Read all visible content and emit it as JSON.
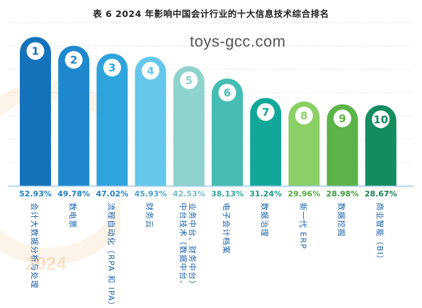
{
  "title": "表 6  2024 年影响中国会计行业的十大信息技术综合排名",
  "watermark_text": "toys-gcc.com",
  "logo_watermark": {
    "year": "2024"
  },
  "colors": {
    "bar": [
      "#1472ba",
      "#1e88cf",
      "#2fa3dc",
      "#65c7ec",
      "#8fd3cd",
      "#46bdb2",
      "#11a89a",
      "#8bd067",
      "#5cb348",
      "#138c5f"
    ],
    "value": [
      "#2480c4",
      "#2480c4",
      "#2480c4",
      "#4aa3d6",
      "#7fb8c9",
      "#35aaa0",
      "#1a9a86",
      "#55a83c",
      "#3e9d3f",
      "#1d8156"
    ],
    "label": "#1a5fa8",
    "circle_text": [
      "#1472ba",
      "#1e88cf",
      "#2fa3dc",
      "#65c7ec",
      "#8fd3cd",
      "#46bdb2",
      "#11a89a",
      "#8bd067",
      "#5cb348",
      "#138c5f"
    ]
  },
  "chart_data": {
    "type": "bar",
    "title": "表 6  2024 年影响中国会计行业的十大信息技术综合排名",
    "categories": [
      "会计大数据分析与处理",
      "数电票",
      "流程自动化（RPA 和 IPA）",
      "财务云",
      "中台技术（数据中台、业务中台、财务中台）",
      "电子会计档案",
      "数据治理",
      "新一代 ERP",
      "数据挖掘",
      "商业智能（BI）"
    ],
    "label_lines": [
      [
        "会计大数据分析与处理"
      ],
      [
        "数电票"
      ],
      [
        "流程自动化（RPA 和 IPA）"
      ],
      [
        "财务云"
      ],
      [
        "中台技术（数据中台、",
        "业务中台、财务中台）"
      ],
      [
        "电子会计档案"
      ],
      [
        "数据治理"
      ],
      [
        "新一代 ERP"
      ],
      [
        "数据挖掘"
      ],
      [
        "商业智能（BI）"
      ]
    ],
    "ranks": [
      "1",
      "2",
      "3",
      "4",
      "5",
      "6",
      "7",
      "8",
      "9",
      "10"
    ],
    "values": [
      52.93,
      49.78,
      47.02,
      45.93,
      42.53,
      38.13,
      31.24,
      29.96,
      28.98,
      28.67
    ],
    "value_labels": [
      "52.93%",
      "49.78%",
      "47.02%",
      "45.93%",
      "42.53%",
      "38.13%",
      "31.24%",
      "29.96%",
      "28.98%",
      "28.67%"
    ],
    "ylim": [
      0,
      58
    ],
    "grid": true,
    "legend": "none"
  }
}
